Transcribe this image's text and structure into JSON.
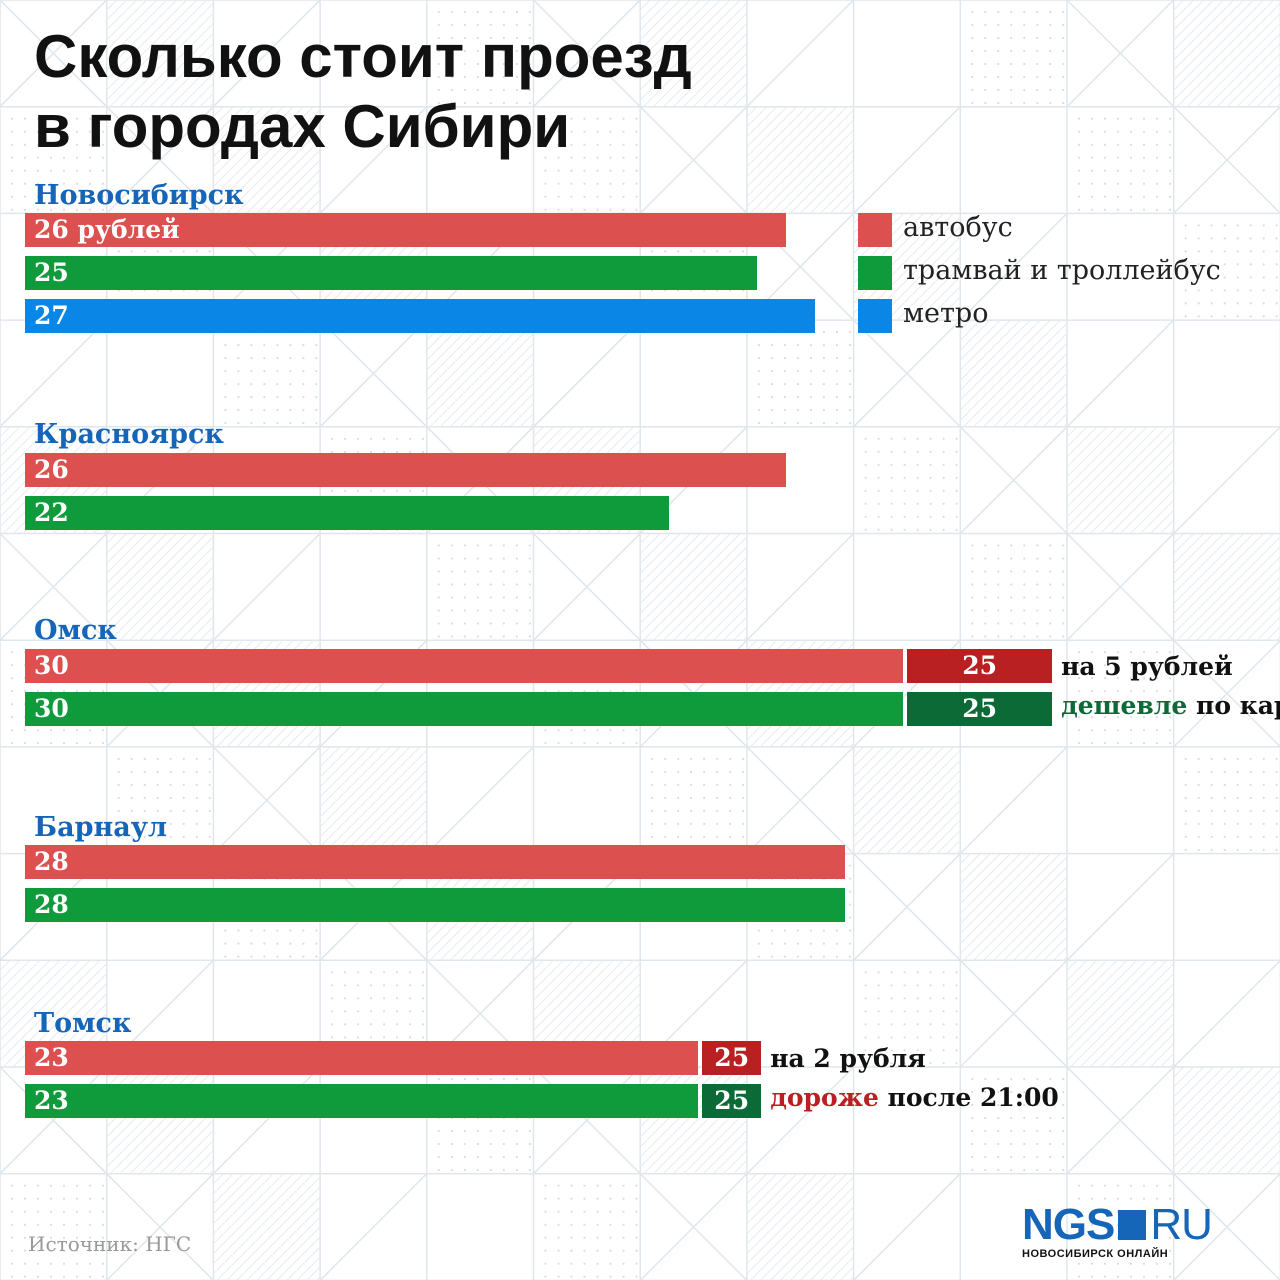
{
  "title_line1": "Сколько стоит проезд",
  "title_line2": "в городах Сибири",
  "colors": {
    "bus": "#dc5050",
    "tram": "#0f9a3c",
    "metro": "#0a87e6",
    "bus_discount": "#b92021",
    "tram_discount": "#0b6a36",
    "city": "#1565b8",
    "note_green": "#0b6a36",
    "note_red": "#b92021"
  },
  "legend": [
    {
      "key": "bus",
      "label": "автобус"
    },
    {
      "key": "tram",
      "label": "трамвай и троллейбус"
    },
    {
      "key": "metro",
      "label": "метро"
    }
  ],
  "chart_data": {
    "type": "bar",
    "orientation": "horizontal",
    "unit": "рублей",
    "series_names": [
      "автобус",
      "трамвай и троллейбус",
      "метро"
    ],
    "cities": [
      {
        "name": "Новосибирск",
        "bars": [
          {
            "series": "bus",
            "value": 26,
            "label": "26 рублей"
          },
          {
            "series": "tram",
            "value": 25,
            "label": "25"
          },
          {
            "series": "metro",
            "value": 27,
            "label": "27"
          }
        ]
      },
      {
        "name": "Красноярск",
        "bars": [
          {
            "series": "bus",
            "value": 26,
            "label": "26"
          },
          {
            "series": "tram",
            "value": 22,
            "label": "22"
          }
        ]
      },
      {
        "name": "Омск",
        "bars": [
          {
            "series": "bus",
            "value": 30,
            "label": "30",
            "alt_value": 25,
            "alt_label": "25"
          },
          {
            "series": "tram",
            "value": 30,
            "label": "30",
            "alt_value": 25,
            "alt_label": "25"
          }
        ],
        "note_lines": [
          [
            {
              "text": "на 5 рублей",
              "color": "#111111"
            }
          ],
          [
            {
              "text": "дешевле",
              "color": "#0b6a36"
            },
            {
              "text": " по карте",
              "color": "#111111"
            }
          ]
        ]
      },
      {
        "name": "Барнаул",
        "bars": [
          {
            "series": "bus",
            "value": 28,
            "label": "28"
          },
          {
            "series": "tram",
            "value": 28,
            "label": "28"
          }
        ]
      },
      {
        "name": "Томск",
        "bars": [
          {
            "series": "bus",
            "value": 23,
            "label": "23",
            "extra_value": 25,
            "extra_label": "25"
          },
          {
            "series": "tram",
            "value": 23,
            "label": "23",
            "extra_value": 25,
            "extra_label": "25"
          }
        ],
        "note_lines": [
          [
            {
              "text": "на 2 рубля",
              "color": "#111111"
            }
          ],
          [
            {
              "text": "дороже",
              "color": "#b92021"
            },
            {
              "text": " после 21:00",
              "color": "#111111"
            }
          ]
        ]
      }
    ]
  },
  "source": "Источник: НГС",
  "logo": {
    "ngs": "NGS",
    "ru": "RU",
    "tagline": "НОВОСИБИРСК ОНЛАЙН"
  }
}
